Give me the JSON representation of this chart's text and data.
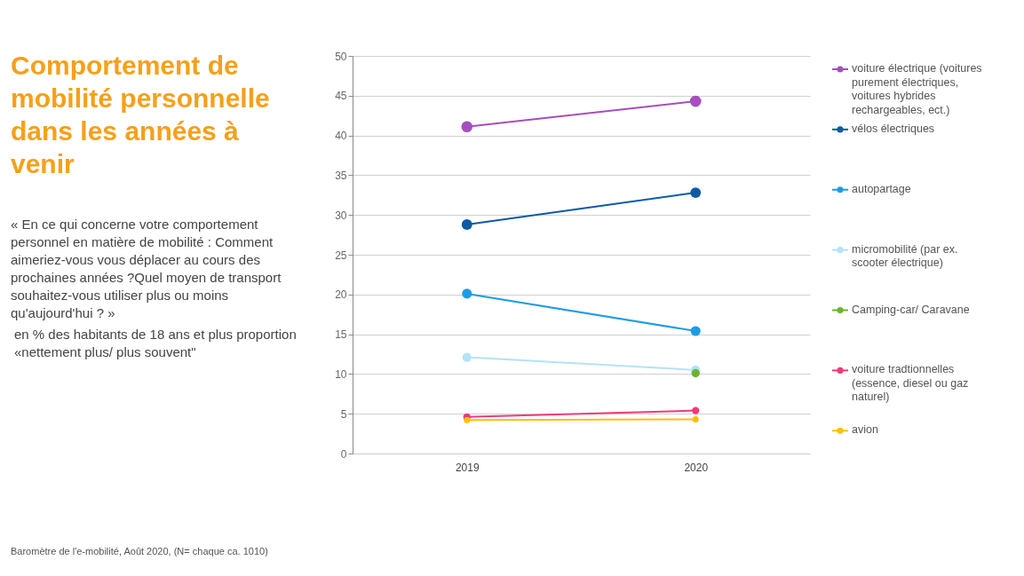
{
  "chart_data": {
    "type": "line",
    "title": "Comportement de mobilité personnelle dans les années à venir",
    "subtitle": "« En ce qui concerne votre comportement personnel en matière de mobilité : Comment aimeriez-vous vous déplacer au cours des prochaines années ?Quel moyen de transport souhaitez-vous utiliser plus ou moins qu'aujourd'hui ? »",
    "annotations": [
      "en % des habitants de 18 ans et plus proportion «nettement plus/ plus souvent\"",
      "Baromètre de l'e-mobilité, Août 2020, (N= chaque ca. 1010)"
    ],
    "categories": [
      "2019",
      "2020"
    ],
    "series": [
      {
        "name": "voiture électrique (voitures purement électriques, voitures hybrides rechargeables, ect.)",
        "color": "#a64dbf",
        "values": [
          41.1,
          44.3
        ]
      },
      {
        "name": "vélos électriques",
        "color": "#0c5aa6",
        "values": [
          28.8,
          32.8
        ]
      },
      {
        "name": "autopartage",
        "color": "#1f9be6",
        "values": [
          20.1,
          15.4
        ]
      },
      {
        "name": "micromobilité (par ex. scooter électrique)",
        "color": "#b3e2f8",
        "values": [
          12.1,
          10.5
        ]
      },
      {
        "name": "Camping-car/ Caravane",
        "color": "#6ab42d",
        "values": [
          null,
          10.1
        ]
      },
      {
        "name": "voiture tradtionnelles (essence, diesel ou gaz naturel)",
        "color": "#f0397a",
        "values": [
          4.6,
          5.4
        ]
      },
      {
        "name": "avion",
        "color": "#ffbf00",
        "values": [
          4.2,
          4.3
        ]
      }
    ],
    "ylim": [
      0,
      50
    ],
    "yticks": [
      0,
      5,
      10,
      15,
      20,
      25,
      30,
      35,
      40,
      45,
      50
    ],
    "grid": "y",
    "legend": "right",
    "marker": "circle",
    "line_style": "solid"
  }
}
